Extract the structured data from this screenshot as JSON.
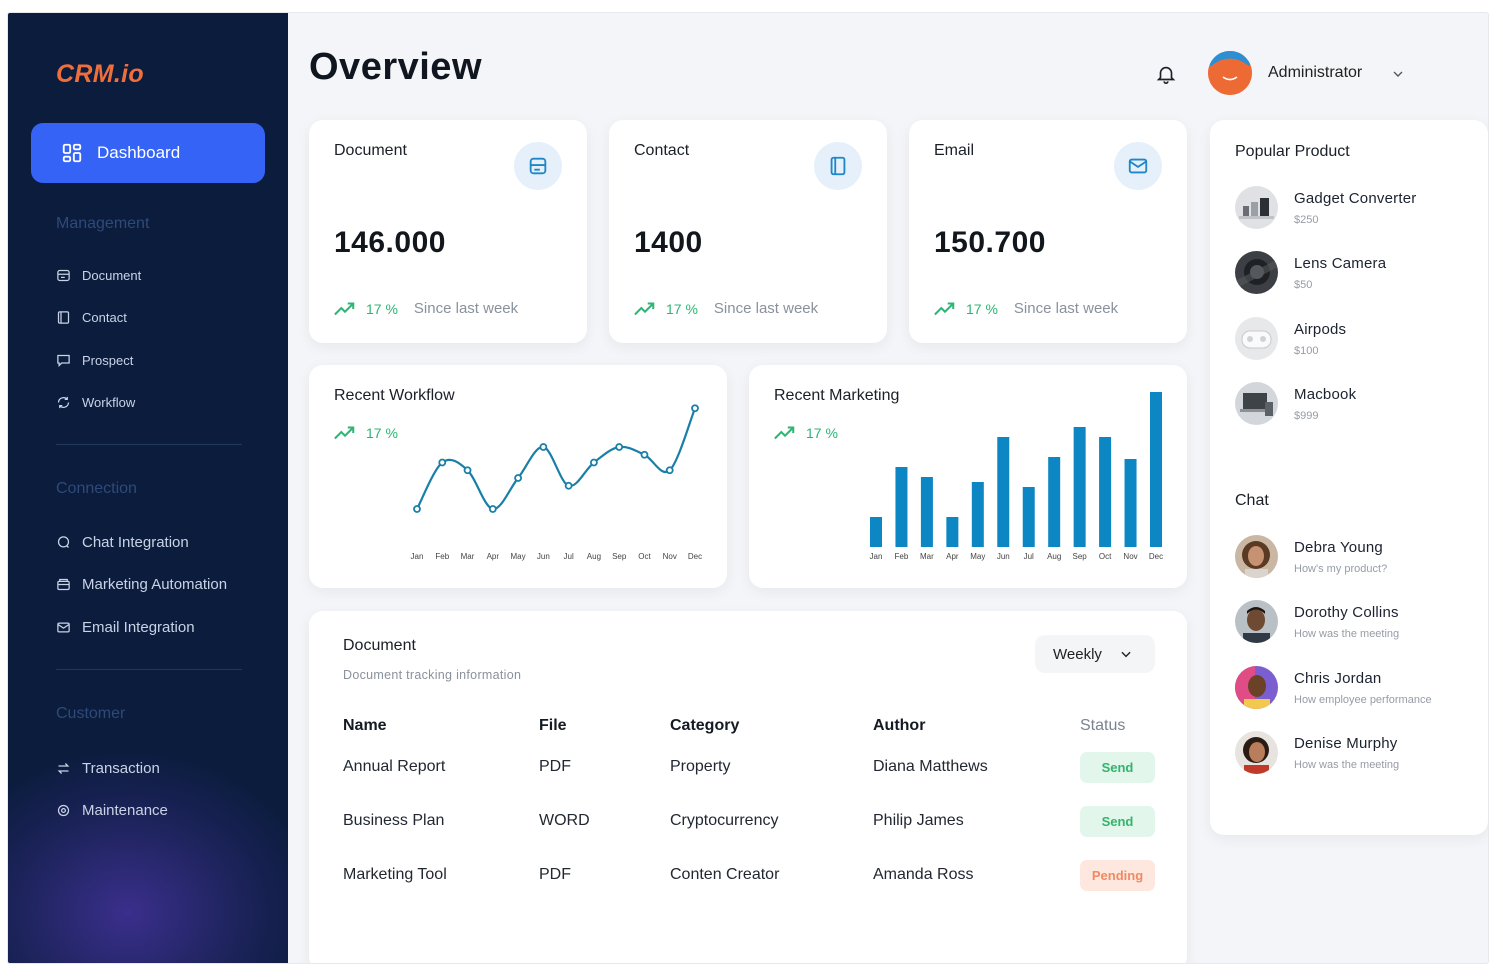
{
  "app": {
    "logo": "CRM.io"
  },
  "sidebar": {
    "active": {
      "label": "Dashboard",
      "icon": "dashboard-grid-icon"
    },
    "sections": [
      {
        "title": "Management",
        "items": [
          {
            "label": "Document",
            "icon": "document-icon"
          },
          {
            "label": "Contact",
            "icon": "contact-book-icon"
          },
          {
            "label": "Prospect",
            "icon": "prospect-icon"
          },
          {
            "label": "Workflow",
            "icon": "workflow-cycle-icon"
          }
        ]
      },
      {
        "title": "Connection",
        "items": [
          {
            "label": "Chat Integration",
            "icon": "chat-bubble-icon"
          },
          {
            "label": "Marketing Automation",
            "icon": "marketing-box-icon"
          },
          {
            "label": "Email Integration",
            "icon": "mail-icon"
          }
        ]
      },
      {
        "title": "Customer",
        "items": [
          {
            "label": "Transaction",
            "icon": "swap-arrows-icon"
          },
          {
            "label": "Maintenance",
            "icon": "settings-icon"
          }
        ]
      }
    ]
  },
  "header": {
    "title": "Overview",
    "user": "Administrator"
  },
  "stats": [
    {
      "label": "Document",
      "value": "146.000",
      "trend": "17 %",
      "since": "Since last week",
      "icon": "document-icon"
    },
    {
      "label": "Contact",
      "value": "1400",
      "trend": "17 %",
      "since": "Since last week",
      "icon": "contact-book-icon"
    },
    {
      "label": "Email",
      "value": "150.700",
      "trend": "17 %",
      "since": "Since last week",
      "icon": "mail-icon"
    }
  ],
  "workflow": {
    "title": "Recent Workflow",
    "trend": "17 %"
  },
  "marketing": {
    "title": "Recent Marketing",
    "trend": "17 %"
  },
  "chart_data": [
    {
      "type": "line",
      "title": "Recent Workflow",
      "categories": [
        "Jan",
        "Feb",
        "Mar",
        "Apr",
        "May",
        "Jun",
        "Jul",
        "Aug",
        "Sep",
        "Oct",
        "Nov",
        "Dec"
      ],
      "values": [
        2,
        5,
        4.5,
        2,
        4,
        6,
        3.5,
        5,
        6,
        5.5,
        4.5,
        8.5
      ],
      "ylim": [
        0,
        10
      ],
      "color": "#1a7fa8"
    },
    {
      "type": "bar",
      "title": "Recent Marketing",
      "categories": [
        "Jan",
        "Feb",
        "Mar",
        "Apr",
        "May",
        "Jun",
        "Jul",
        "Aug",
        "Sep",
        "Oct",
        "Nov",
        "Dec"
      ],
      "values": [
        3,
        8,
        7,
        3,
        6.5,
        11,
        6,
        9,
        12,
        11,
        8.8,
        15.5
      ],
      "ylim": [
        0,
        16
      ],
      "color": "#0d86c4"
    }
  ],
  "documents": {
    "title": "Document",
    "subtitle": "Document tracking information",
    "filter": "Weekly",
    "columns": [
      "Name",
      "File",
      "Category",
      "Author",
      "Status"
    ],
    "rows": [
      {
        "name": "Annual Report",
        "file": "PDF",
        "category": "Property",
        "author": "Diana Matthews",
        "status": "Send"
      },
      {
        "name": "Business Plan",
        "file": "WORD",
        "category": "Cryptocurrency",
        "author": "Philip James",
        "status": "Send"
      },
      {
        "name": "Marketing Tool",
        "file": "PDF",
        "category": "Conten Creator",
        "author": "Amanda Ross",
        "status": "Pending"
      }
    ]
  },
  "popular": {
    "title": "Popular Product",
    "items": [
      {
        "name": "Gadget Converter",
        "price": "$250"
      },
      {
        "name": "Lens Camera",
        "price": "$50"
      },
      {
        "name": "Airpods",
        "price": "$100"
      },
      {
        "name": "Macbook",
        "price": "$999"
      }
    ]
  },
  "chat": {
    "title": "Chat",
    "items": [
      {
        "name": "Debra Young",
        "message": "How's my product?"
      },
      {
        "name": "Dorothy Collins",
        "message": "How was the meeting"
      },
      {
        "name": "Chris Jordan",
        "message": "How employee performance"
      },
      {
        "name": "Denise Murphy",
        "message": "How was the meeting"
      }
    ]
  },
  "colors": {
    "accent": "#3563f5",
    "sidebar": "#0b1c3d",
    "positive": "#2bb673",
    "logo": "#ef6f3c"
  }
}
